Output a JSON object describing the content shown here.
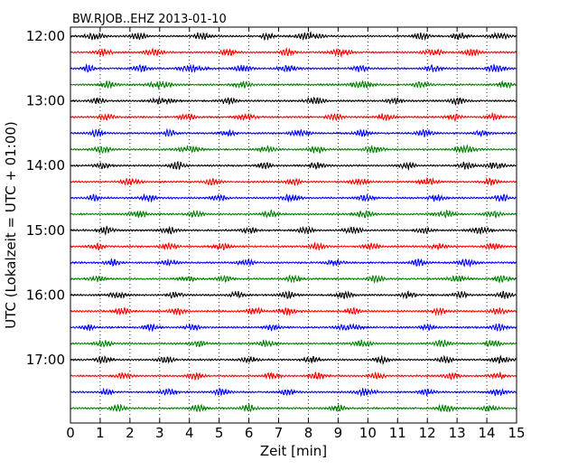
{
  "chart_data": {
    "type": "line",
    "title": "BW.RJOB..EHZ 2013-01-10",
    "xlabel": "Zeit  [min]",
    "ylabel": "UTC (Lokalzeit = UTC + 01:00)",
    "xlim": [
      0,
      15
    ],
    "x_ticks": [
      0,
      1,
      2,
      3,
      4,
      5,
      6,
      7,
      8,
      9,
      10,
      11,
      12,
      13,
      14,
      15
    ],
    "y_ticks": [
      "12:00",
      "13:00",
      "14:00",
      "15:00",
      "16:00",
      "17:00"
    ],
    "y_tick_rows": [
      0,
      4,
      8,
      12,
      16,
      20
    ],
    "grid": "vertical dotted lines at each minute",
    "row_interval_min": 15,
    "row_colors": [
      "#000000",
      "#ff0000",
      "#0000ff",
      "#008000"
    ],
    "rows": [
      {
        "start": "12:00",
        "bursts": [
          [
            0.8,
            0.6
          ],
          [
            2.3,
            0.5
          ],
          [
            4.4,
            0.5
          ],
          [
            6.6,
            0.4
          ],
          [
            8.0,
            0.8
          ],
          [
            11.8,
            0.5
          ],
          [
            13.1,
            0.5
          ],
          [
            14.4,
            0.6
          ]
        ]
      },
      {
        "start": "12:15",
        "bursts": [
          [
            1.1,
            0.5
          ],
          [
            2.8,
            0.6
          ],
          [
            5.3,
            0.5
          ],
          [
            7.3,
            0.5
          ],
          [
            9.1,
            0.7
          ],
          [
            12.2,
            0.6
          ],
          [
            13.5,
            0.5
          ]
        ]
      },
      {
        "start": "12:30",
        "bursts": [
          [
            0.6,
            0.4
          ],
          [
            2.4,
            0.5
          ],
          [
            4.1,
            0.8
          ],
          [
            5.8,
            0.5
          ],
          [
            7.3,
            0.6
          ],
          [
            9.7,
            0.5
          ],
          [
            12.2,
            0.5
          ],
          [
            14.3,
            0.6
          ]
        ]
      },
      {
        "start": "12:45",
        "bursts": [
          [
            1.3,
            0.5
          ],
          [
            3.0,
            0.7
          ],
          [
            5.8,
            0.5
          ],
          [
            9.8,
            0.7
          ],
          [
            11.8,
            0.5
          ],
          [
            14.6,
            0.5
          ]
        ]
      },
      {
        "start": "13:00",
        "bursts": [
          [
            0.9,
            0.5
          ],
          [
            3.1,
            0.7
          ],
          [
            5.3,
            0.5
          ],
          [
            8.2,
            0.6
          ],
          [
            10.9,
            0.5
          ],
          [
            13.0,
            0.5
          ]
        ]
      },
      {
        "start": "13:15",
        "bursts": [
          [
            1.2,
            0.5
          ],
          [
            3.9,
            0.5
          ],
          [
            5.9,
            0.6
          ],
          [
            8.9,
            0.5
          ],
          [
            10.6,
            0.5
          ],
          [
            12.9,
            0.5
          ],
          [
            14.2,
            0.5
          ]
        ]
      },
      {
        "start": "13:30",
        "bursts": [
          [
            0.9,
            0.5
          ],
          [
            3.3,
            0.5
          ],
          [
            5.3,
            0.5
          ],
          [
            7.7,
            0.6
          ],
          [
            9.8,
            0.5
          ],
          [
            11.9,
            0.5
          ],
          [
            13.8,
            0.5
          ]
        ]
      },
      {
        "start": "13:45",
        "bursts": [
          [
            1.1,
            0.6
          ],
          [
            4.0,
            0.7
          ],
          [
            6.6,
            0.5
          ],
          [
            8.3,
            0.5
          ],
          [
            10.2,
            0.6
          ],
          [
            13.3,
            0.7
          ]
        ]
      },
      {
        "start": "14:00",
        "bursts": [
          [
            1.1,
            0.5
          ],
          [
            3.6,
            0.5
          ],
          [
            6.5,
            0.5
          ],
          [
            8.3,
            0.5
          ],
          [
            11.3,
            0.5
          ],
          [
            13.3,
            0.5
          ],
          [
            14.3,
            0.6
          ]
        ]
      },
      {
        "start": "14:15",
        "bursts": [
          [
            2.0,
            0.6
          ],
          [
            4.8,
            0.5
          ],
          [
            7.5,
            0.5
          ],
          [
            9.7,
            0.5
          ],
          [
            12.0,
            0.6
          ],
          [
            14.1,
            0.5
          ]
        ]
      },
      {
        "start": "14:30",
        "bursts": [
          [
            0.8,
            0.4
          ],
          [
            2.6,
            0.5
          ],
          [
            5.0,
            0.5
          ],
          [
            7.4,
            0.6
          ],
          [
            9.9,
            0.5
          ],
          [
            12.3,
            0.5
          ],
          [
            14.5,
            0.5
          ]
        ]
      },
      {
        "start": "14:45",
        "bursts": [
          [
            2.3,
            0.6
          ],
          [
            4.2,
            0.5
          ],
          [
            6.7,
            0.5
          ],
          [
            9.9,
            0.6
          ],
          [
            12.6,
            0.6
          ],
          [
            14.2,
            0.5
          ]
        ]
      },
      {
        "start": "15:00",
        "bursts": [
          [
            1.2,
            0.5
          ],
          [
            3.3,
            0.5
          ],
          [
            6.0,
            0.5
          ],
          [
            7.9,
            0.5
          ],
          [
            9.5,
            0.6
          ],
          [
            11.9,
            0.5
          ],
          [
            13.8,
            0.6
          ]
        ]
      },
      {
        "start": "15:15",
        "bursts": [
          [
            0.9,
            0.5
          ],
          [
            3.3,
            0.5
          ],
          [
            5.1,
            0.5
          ],
          [
            8.3,
            0.5
          ],
          [
            10.1,
            0.5
          ],
          [
            12.4,
            0.5
          ],
          [
            14.2,
            0.5
          ]
        ]
      },
      {
        "start": "15:30",
        "bursts": [
          [
            1.4,
            0.5
          ],
          [
            3.3,
            0.5
          ],
          [
            5.9,
            0.5
          ],
          [
            8.9,
            0.5
          ],
          [
            11.7,
            0.5
          ],
          [
            13.3,
            0.6
          ]
        ]
      },
      {
        "start": "15:45",
        "bursts": [
          [
            0.9,
            0.5
          ],
          [
            3.9,
            0.5
          ],
          [
            5.2,
            0.5
          ],
          [
            7.5,
            0.5
          ],
          [
            10.3,
            0.5
          ],
          [
            13.0,
            0.6
          ],
          [
            14.5,
            0.5
          ]
        ]
      },
      {
        "start": "16:00",
        "bursts": [
          [
            1.6,
            0.6
          ],
          [
            3.5,
            0.5
          ],
          [
            5.6,
            0.5
          ],
          [
            7.3,
            0.5
          ],
          [
            9.2,
            0.5
          ],
          [
            11.4,
            0.5
          ],
          [
            13.1,
            0.5
          ],
          [
            14.6,
            0.5
          ]
        ]
      },
      {
        "start": "16:15",
        "bursts": [
          [
            1.7,
            0.5
          ],
          [
            3.6,
            0.5
          ],
          [
            6.2,
            0.5
          ],
          [
            7.3,
            0.6
          ],
          [
            9.5,
            0.5
          ],
          [
            12.4,
            0.5
          ],
          [
            14.4,
            0.5
          ]
        ]
      },
      {
        "start": "16:30",
        "bursts": [
          [
            0.6,
            0.4
          ],
          [
            2.7,
            0.5
          ],
          [
            4.1,
            0.5
          ],
          [
            6.8,
            0.5
          ],
          [
            9.4,
            0.8
          ],
          [
            12.0,
            0.5
          ],
          [
            14.4,
            0.5
          ]
        ]
      },
      {
        "start": "16:45",
        "bursts": [
          [
            1.1,
            0.5
          ],
          [
            4.3,
            0.5
          ],
          [
            6.6,
            0.5
          ],
          [
            9.8,
            0.6
          ],
          [
            12.5,
            0.5
          ],
          [
            14.2,
            0.5
          ]
        ]
      },
      {
        "start": "17:00",
        "bursts": [
          [
            1.1,
            0.5
          ],
          [
            3.2,
            0.5
          ],
          [
            6.0,
            0.5
          ],
          [
            8.1,
            0.5
          ],
          [
            10.5,
            0.5
          ],
          [
            12.6,
            0.5
          ],
          [
            14.5,
            0.6
          ]
        ]
      },
      {
        "start": "17:15",
        "bursts": [
          [
            1.8,
            0.5
          ],
          [
            4.2,
            0.5
          ],
          [
            6.8,
            0.5
          ],
          [
            8.3,
            0.5
          ],
          [
            10.3,
            0.5
          ],
          [
            12.8,
            0.5
          ],
          [
            14.4,
            0.5
          ]
        ]
      },
      {
        "start": "17:30",
        "bursts": [
          [
            1.2,
            0.4
          ],
          [
            3.3,
            0.5
          ],
          [
            5.1,
            0.5
          ],
          [
            7.3,
            0.5
          ],
          [
            9.9,
            0.7
          ],
          [
            12.0,
            0.5
          ],
          [
            14.4,
            0.5
          ]
        ]
      },
      {
        "start": "17:45",
        "bursts": [
          [
            1.6,
            0.5
          ],
          [
            4.3,
            0.5
          ],
          [
            6.0,
            0.5
          ],
          [
            9.0,
            0.5
          ],
          [
            12.6,
            0.6
          ],
          [
            14.1,
            0.5
          ]
        ]
      }
    ]
  }
}
